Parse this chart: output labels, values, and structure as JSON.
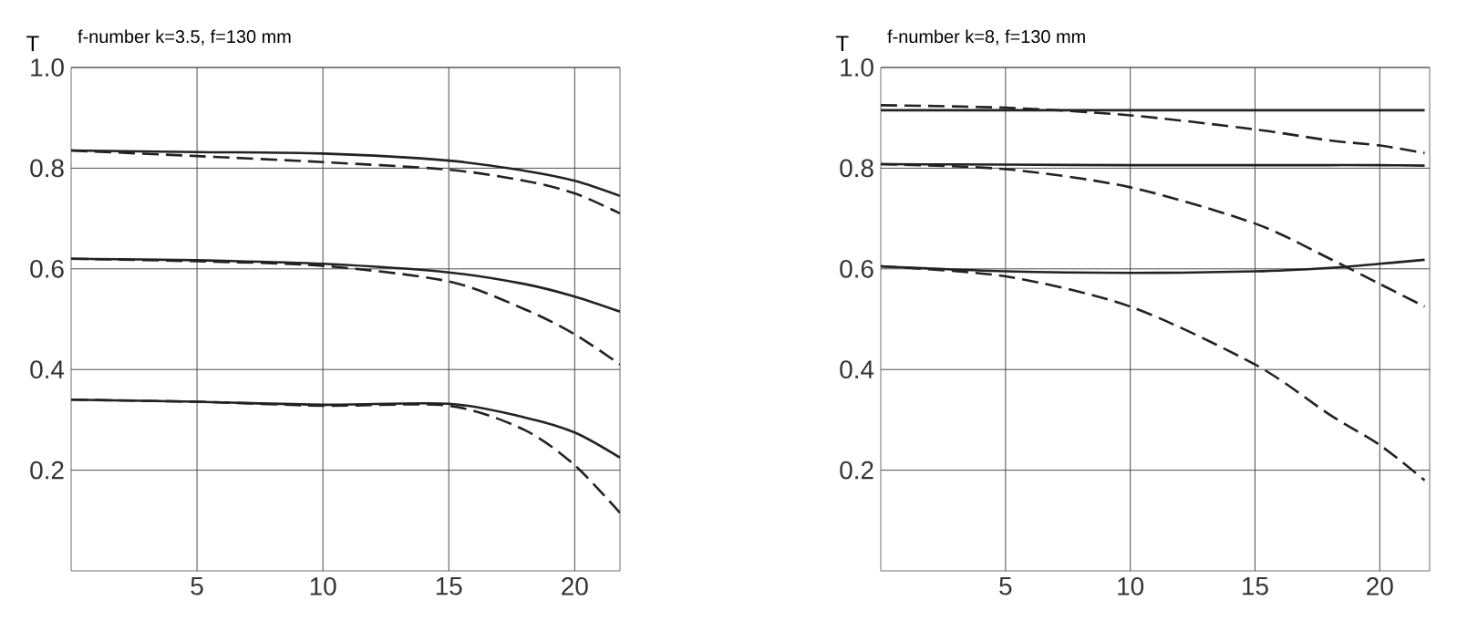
{
  "chart_data": [
    {
      "type": "line",
      "title": "f-number k=3.5, f=130 mm",
      "ylabel": "T",
      "x": [
        0,
        5,
        10,
        15,
        18,
        20,
        21.8
      ],
      "xlim": [
        0,
        21.8
      ],
      "ylim": [
        0,
        1
      ],
      "xticks": [
        5,
        10,
        15,
        20
      ],
      "yticks": [
        0.2,
        0.4,
        0.6,
        0.8,
        {
          "value": 1,
          "label": "1.0"
        }
      ],
      "grid": true,
      "series": [
        {
          "color": "#222222",
          "line_style": "solid",
          "values": [
            0.835,
            0.832,
            0.829,
            0.815,
            0.795,
            0.775,
            0.745
          ]
        },
        {
          "color": "#222222",
          "line_style": "dashed",
          "values": [
            0.835,
            0.824,
            0.812,
            0.797,
            0.775,
            0.75,
            0.71
          ]
        },
        {
          "color": "#222222",
          "line_style": "solid",
          "values": [
            0.62,
            0.617,
            0.61,
            0.593,
            0.57,
            0.545,
            0.515
          ]
        },
        {
          "color": "#222222",
          "line_style": "dashed",
          "values": [
            0.62,
            0.615,
            0.606,
            0.575,
            0.52,
            0.47,
            0.41
          ]
        },
        {
          "color": "#222222",
          "line_style": "solid",
          "values": [
            0.34,
            0.336,
            0.33,
            0.332,
            0.305,
            0.275,
            0.225
          ]
        },
        {
          "color": "#222222",
          "line_style": "dashed",
          "values": [
            0.34,
            0.336,
            0.328,
            0.328,
            0.28,
            0.21,
            0.115
          ]
        }
      ]
    },
    {
      "type": "line",
      "title": "f-number k=8, f=130 mm",
      "ylabel": "T",
      "x": [
        0,
        5,
        10,
        15,
        18,
        20,
        21.8
      ],
      "xlim": [
        0,
        22
      ],
      "ylim": [
        0,
        1
      ],
      "xticks": [
        5,
        10,
        15,
        20
      ],
      "yticks": [
        0.2,
        0.4,
        0.6,
        0.8,
        {
          "value": 1,
          "label": "1.0"
        }
      ],
      "grid": true,
      "series": [
        {
          "color": "#222222",
          "line_style": "solid",
          "values": [
            0.915,
            0.915,
            0.915,
            0.915,
            0.915,
            0.915,
            0.915
          ]
        },
        {
          "color": "#222222",
          "line_style": "dashed",
          "values": [
            0.925,
            0.92,
            0.905,
            0.877,
            0.855,
            0.845,
            0.83
          ]
        },
        {
          "color": "#222222",
          "line_style": "solid",
          "values": [
            0.808,
            0.807,
            0.806,
            0.806,
            0.806,
            0.806,
            0.805
          ]
        },
        {
          "color": "#222222",
          "line_style": "dashed",
          "values": [
            0.808,
            0.798,
            0.762,
            0.69,
            0.62,
            0.57,
            0.525
          ]
        },
        {
          "color": "#222222",
          "line_style": "solid",
          "values": [
            0.605,
            0.595,
            0.592,
            0.595,
            0.602,
            0.61,
            0.618
          ]
        },
        {
          "color": "#222222",
          "line_style": "dashed",
          "values": [
            0.605,
            0.585,
            0.525,
            0.41,
            0.31,
            0.25,
            0.18
          ]
        }
      ]
    }
  ]
}
